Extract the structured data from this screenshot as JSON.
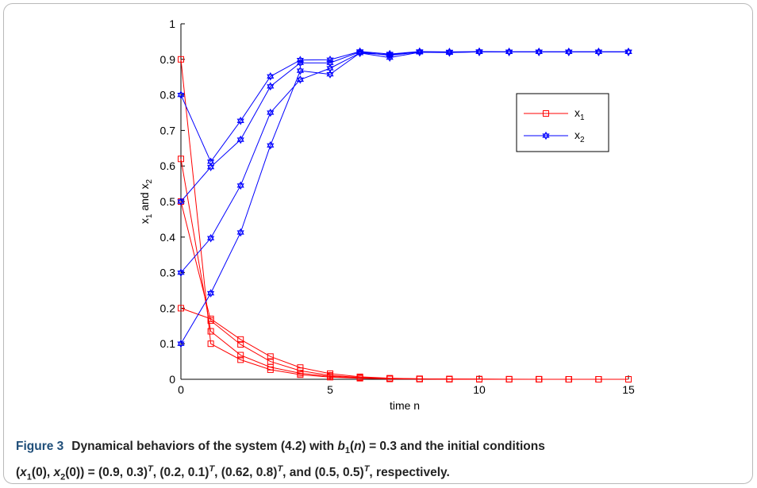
{
  "chart_data": {
    "type": "line",
    "xlabel": "time n",
    "ylabel": "x_1 and x_2",
    "xlim": [
      0,
      15
    ],
    "ylim": [
      0,
      1
    ],
    "xticks": [
      0,
      5,
      10,
      15
    ],
    "yticks": [
      0,
      0.1,
      0.2,
      0.3,
      0.4,
      0.5,
      0.6,
      0.7,
      0.8,
      0.9,
      1
    ],
    "ytick_labels": [
      "0",
      "0.1",
      "0.2",
      "0.3",
      "0.4",
      "0.5",
      "0.6",
      "0.7",
      "0.8",
      "0.9",
      "1"
    ],
    "grid": false,
    "legend_position": "top-right",
    "legend": [
      {
        "label": "x",
        "sub": "1",
        "color": "#ff0000",
        "marker": "square"
      },
      {
        "label": "x",
        "sub": "2",
        "color": "#0000ff",
        "marker": "hexagram"
      }
    ],
    "x": [
      0,
      1,
      2,
      3,
      4,
      5,
      6,
      7,
      8,
      9,
      10,
      11,
      12,
      13,
      14,
      15
    ],
    "series": [
      {
        "group": "x1",
        "color": "#ff0000",
        "values": [
          0.9,
          0.1,
          0.055,
          0.027,
          0.013,
          0.006,
          0.003,
          0.001,
          0.0005,
          0.0003,
          0.0002,
          0.0001,
          0.0001,
          0,
          0,
          0
        ]
      },
      {
        "group": "x1",
        "color": "#ff0000",
        "values": [
          0.2,
          0.17,
          0.112,
          0.064,
          0.033,
          0.016,
          0.007,
          0.003,
          0.0015,
          0.0007,
          0.0003,
          0.0002,
          0.0001,
          0,
          0,
          0
        ]
      },
      {
        "group": "x1",
        "color": "#ff0000",
        "values": [
          0.62,
          0.135,
          0.068,
          0.034,
          0.017,
          0.008,
          0.004,
          0.002,
          0.001,
          0.0005,
          0.0002,
          0.0001,
          0.0001,
          0,
          0,
          0
        ]
      },
      {
        "group": "x1",
        "color": "#ff0000",
        "values": [
          0.5,
          0.165,
          0.098,
          0.05,
          0.024,
          0.011,
          0.005,
          0.002,
          0.001,
          0.0005,
          0.0002,
          0.0001,
          0.0001,
          0,
          0,
          0
        ]
      },
      {
        "group": "x2",
        "color": "#0000ff",
        "values": [
          0.3,
          0.397,
          0.545,
          0.75,
          0.843,
          0.875,
          0.918,
          0.913,
          0.921,
          0.92,
          0.921,
          0.921,
          0.921,
          0.921,
          0.921,
          0.921
        ]
      },
      {
        "group": "x2",
        "color": "#0000ff",
        "values": [
          0.1,
          0.242,
          0.413,
          0.658,
          0.868,
          0.858,
          0.918,
          0.905,
          0.92,
          0.919,
          0.921,
          0.921,
          0.921,
          0.921,
          0.921,
          0.921
        ]
      },
      {
        "group": "x2",
        "color": "#0000ff",
        "values": [
          0.8,
          0.612,
          0.727,
          0.852,
          0.898,
          0.899,
          0.922,
          0.915,
          0.922,
          0.921,
          0.922,
          0.921,
          0.921,
          0.921,
          0.921,
          0.921
        ]
      },
      {
        "group": "x2",
        "color": "#0000ff",
        "values": [
          0.5,
          0.597,
          0.674,
          0.824,
          0.89,
          0.89,
          0.921,
          0.911,
          0.921,
          0.92,
          0.921,
          0.921,
          0.921,
          0.921,
          0.921,
          0.921
        ]
      }
    ]
  },
  "caption": {
    "label": "Figure 3",
    "line1_a": "Dynamical behaviors of the system (4.2) with ",
    "b": "b",
    "b_sub": "1",
    "n_paren_open": "(",
    "n": "n",
    "line1_b": ") = 0.3 and the initial conditions",
    "l2_open": "(",
    "x": "x",
    "s1": "1",
    "s2": "2",
    "l2_mid": "(0), ",
    "l2_close": "(0)) = (0.9, 0.3)",
    "T": "T",
    "c1": ", (0.2, 0.1)",
    "c2": ", (0.62, 0.8)",
    "c3": ", and (0.5, 0.5)",
    "tail": ", respectively."
  }
}
